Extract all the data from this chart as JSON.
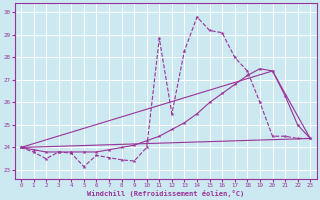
{
  "xlabel": "Windchill (Refroidissement éolien,°C)",
  "background_color": "#cce8f0",
  "grid_color": "#ffffff",
  "line_color": "#993399",
  "xlim": [
    -0.5,
    23.5
  ],
  "ylim": [
    22.6,
    30.4
  ],
  "yticks": [
    23,
    24,
    25,
    26,
    27,
    28,
    29,
    30
  ],
  "xticks": [
    0,
    1,
    2,
    3,
    4,
    5,
    6,
    7,
    8,
    9,
    10,
    11,
    12,
    13,
    14,
    15,
    16,
    17,
    18,
    19,
    20,
    21,
    22,
    23
  ],
  "series1_x": [
    0,
    1,
    2,
    3,
    4,
    5,
    6,
    7,
    8,
    9,
    10,
    11,
    12,
    13,
    14,
    15,
    16,
    17,
    18,
    19,
    20,
    21,
    22,
    23
  ],
  "series1_y": [
    24.0,
    23.8,
    23.5,
    23.8,
    23.75,
    23.15,
    23.65,
    23.55,
    23.45,
    23.4,
    24.0,
    28.85,
    25.5,
    28.3,
    29.8,
    29.2,
    29.1,
    28.0,
    27.4,
    26.0,
    24.5,
    24.5,
    24.4,
    24.4
  ],
  "series2_x": [
    0,
    1,
    2,
    3,
    4,
    5,
    6,
    7,
    8,
    9,
    10,
    11,
    12,
    13,
    14,
    15,
    16,
    17,
    18,
    19,
    20,
    21,
    22,
    23
  ],
  "series2_y": [
    24.0,
    23.9,
    23.8,
    23.8,
    23.8,
    23.8,
    23.8,
    23.9,
    24.0,
    24.1,
    24.3,
    24.5,
    24.8,
    25.1,
    25.5,
    26.0,
    26.4,
    26.8,
    27.2,
    27.5,
    27.4,
    26.3,
    25.0,
    24.4
  ],
  "series3_x": [
    0,
    23
  ],
  "series3_y": [
    24.0,
    24.4
  ],
  "series4_x": [
    0,
    20,
    23
  ],
  "series4_y": [
    24.0,
    27.4,
    24.4
  ]
}
